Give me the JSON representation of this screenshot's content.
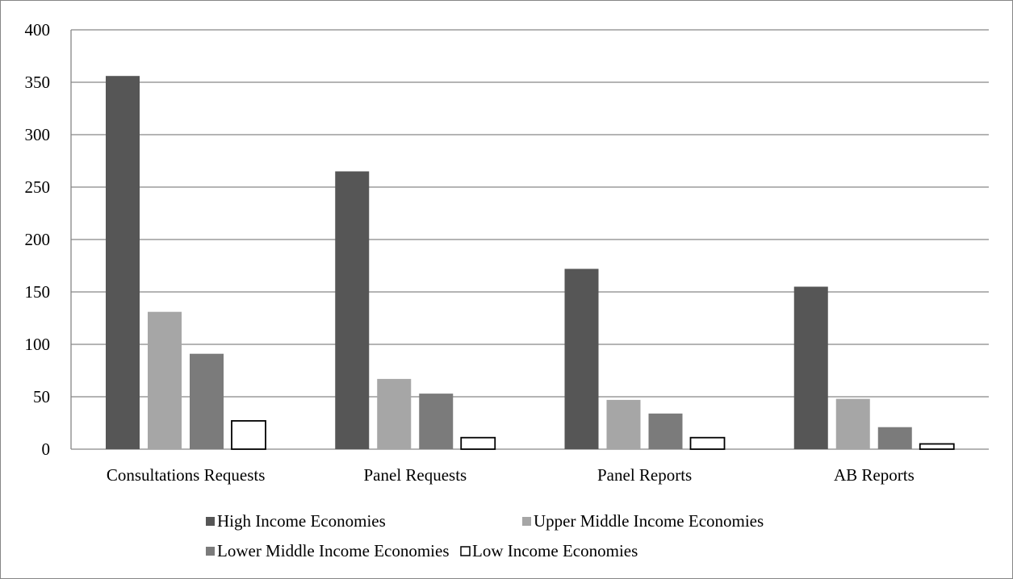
{
  "chart_data": {
    "type": "bar",
    "categories": [
      "Consultations Requests",
      "Panel Requests",
      "Panel Reports",
      "AB Reports"
    ],
    "series": [
      {
        "name": "High Income Economies",
        "values": [
          356,
          265,
          172,
          155
        ],
        "color": "#565656"
      },
      {
        "name": "Upper Middle Income Economies",
        "values": [
          131,
          67,
          47,
          48
        ],
        "color": "#a6a6a6"
      },
      {
        "name": "Lower Middle Income Economies",
        "values": [
          91,
          53,
          34,
          21
        ],
        "color": "#7b7b7b"
      },
      {
        "name": "Low Income Economies",
        "values": [
          27,
          11,
          11,
          5
        ],
        "color": "#ffffff",
        "stroke": "#000000"
      }
    ],
    "ylim": [
      0,
      400
    ],
    "yticks": [
      "0",
      "50",
      "100",
      "150",
      "200",
      "250",
      "300",
      "350",
      "400"
    ],
    "grid": true,
    "legend_position": "bottom"
  }
}
